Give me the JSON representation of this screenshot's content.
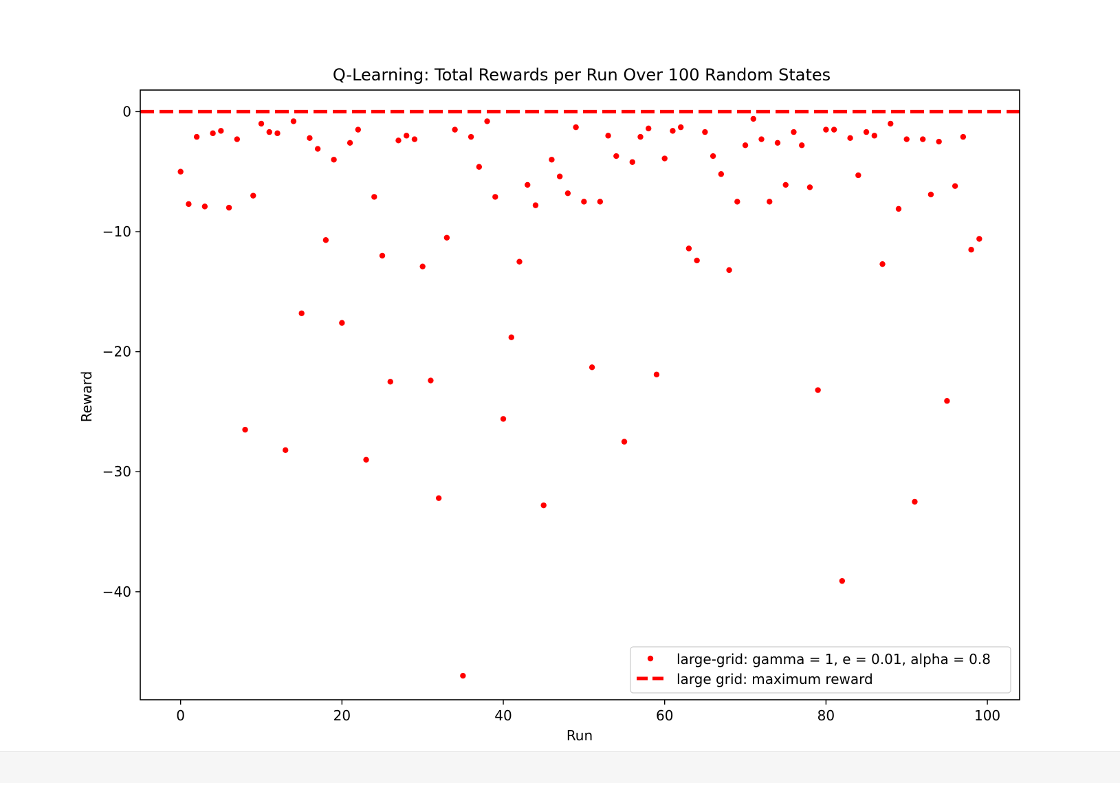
{
  "chart_data": {
    "type": "scatter",
    "title": "Q-Learning: Total Rewards per Run Over 100 Random States",
    "xlabel": "Run",
    "ylabel": "Reward",
    "xlim": [
      -5,
      104
    ],
    "ylim": [
      -49,
      1.8
    ],
    "xticks": [
      0,
      20,
      40,
      60,
      80,
      100
    ],
    "yticks": [
      0,
      -10,
      -20,
      -30,
      -40
    ],
    "xtick_labels": [
      "0",
      "20",
      "40",
      "60",
      "80",
      "100"
    ],
    "ytick_labels": [
      "0",
      "−10",
      "−20",
      "−30",
      "−40"
    ],
    "grid": false,
    "legend_position": "lower-right",
    "series": [
      {
        "name": "large-grid: gamma = 1, e = 0.01, alpha = 0.8",
        "kind": "points",
        "color": "#ff0000",
        "x": [
          0,
          1,
          2,
          3,
          4,
          5,
          6,
          7,
          8,
          9,
          10,
          11,
          12,
          13,
          14,
          15,
          16,
          17,
          18,
          19,
          20,
          21,
          22,
          23,
          24,
          25,
          26,
          27,
          28,
          29,
          30,
          31,
          32,
          33,
          34,
          35,
          36,
          37,
          38,
          39,
          40,
          41,
          42,
          43,
          44,
          45,
          46,
          47,
          48,
          49,
          50,
          51,
          52,
          53,
          54,
          55,
          56,
          57,
          58,
          59,
          60,
          61,
          62,
          63,
          64,
          65,
          66,
          67,
          68,
          69,
          70,
          71,
          72,
          73,
          74,
          75,
          76,
          77,
          78,
          79,
          80,
          81,
          82,
          83,
          84,
          85,
          86,
          87,
          88,
          89,
          90,
          91,
          92,
          93,
          94,
          95,
          96,
          97,
          98,
          99
        ],
        "y": [
          -5.0,
          -7.7,
          -2.1,
          -7.9,
          -1.8,
          -1.6,
          -8.0,
          -2.3,
          -26.5,
          -7.0,
          -1.0,
          -1.7,
          -1.8,
          -28.2,
          -0.8,
          -16.8,
          -2.2,
          -3.1,
          -10.7,
          -4.0,
          -17.6,
          -2.6,
          -1.5,
          -29.0,
          -7.1,
          -12.0,
          -22.5,
          -2.4,
          -2.0,
          -2.3,
          -12.9,
          -22.4,
          -32.2,
          -10.5,
          -1.5,
          -47.0,
          -2.1,
          -4.6,
          -0.8,
          -7.1,
          -25.6,
          -18.8,
          -12.5,
          -6.1,
          -7.8,
          -32.8,
          -4.0,
          -5.4,
          -6.8,
          -1.3,
          -7.5,
          -21.3,
          -7.5,
          -2.0,
          -3.7,
          -27.5,
          -4.2,
          -2.1,
          -1.4,
          -21.9,
          -3.9,
          -1.6,
          -1.3,
          -11.4,
          -12.4,
          -1.7,
          -3.7,
          -5.2,
          -13.2,
          -7.5,
          -2.8,
          -0.6,
          -2.3,
          -7.5,
          -2.6,
          -6.1,
          -1.7,
          -2.8,
          -6.3,
          -23.2,
          -1.5,
          -1.5,
          -39.1,
          -2.2,
          -5.3,
          -1.7,
          -2.0,
          -12.7,
          -1.0,
          -8.1,
          -2.3,
          -32.5,
          -2.3,
          -6.9,
          -2.5,
          -24.1,
          -6.2,
          -2.1,
          -11.5,
          -10.6
        ]
      },
      {
        "name": "large grid: maximum reward",
        "kind": "line",
        "color": "#ff0000",
        "dashed": true,
        "y": 0
      }
    ]
  }
}
